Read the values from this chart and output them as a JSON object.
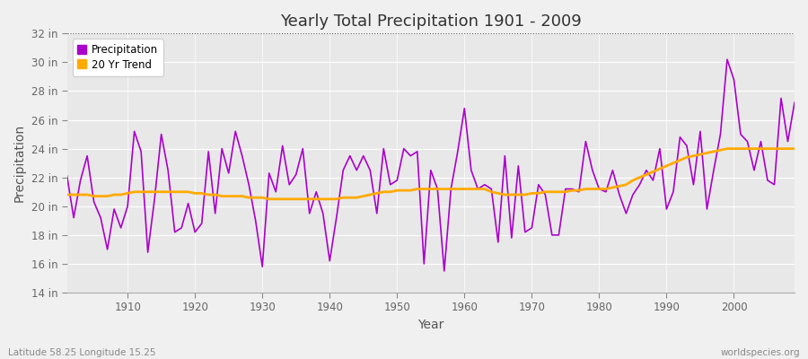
{
  "title": "Yearly Total Precipitation 1901 - 2009",
  "xlabel": "Year",
  "ylabel": "Precipitation",
  "bottom_left": "Latitude 58.25 Longitude 15.25",
  "bottom_right": "worldspecies.org",
  "ylim": [
    14,
    32
  ],
  "ytick_labels": [
    "14 in",
    "16 in",
    "18 in",
    "20 in",
    "22 in",
    "24 in",
    "26 in",
    "28 in",
    "30 in",
    "32 in"
  ],
  "ytick_values": [
    14,
    16,
    18,
    20,
    22,
    24,
    26,
    28,
    30,
    32
  ],
  "xlim": [
    1901,
    2009
  ],
  "xtick_values": [
    1910,
    1920,
    1930,
    1940,
    1950,
    1960,
    1970,
    1980,
    1990,
    2000
  ],
  "precip_color": "#aa00cc",
  "trend_color": "#ffaa00",
  "background_color": "#f0f0f0",
  "plot_bg_color": "#e8e8e8",
  "grid_color": "#ffffff",
  "years": [
    1901,
    1902,
    1903,
    1904,
    1905,
    1906,
    1907,
    1908,
    1909,
    1910,
    1911,
    1912,
    1913,
    1914,
    1915,
    1916,
    1917,
    1918,
    1919,
    1920,
    1921,
    1922,
    1923,
    1924,
    1925,
    1926,
    1927,
    1928,
    1929,
    1930,
    1931,
    1932,
    1933,
    1934,
    1935,
    1936,
    1937,
    1938,
    1939,
    1940,
    1941,
    1942,
    1943,
    1944,
    1945,
    1946,
    1947,
    1948,
    1949,
    1950,
    1951,
    1952,
    1953,
    1954,
    1955,
    1956,
    1957,
    1958,
    1959,
    1960,
    1961,
    1962,
    1963,
    1964,
    1965,
    1966,
    1967,
    1968,
    1969,
    1970,
    1971,
    1972,
    1973,
    1974,
    1975,
    1976,
    1977,
    1978,
    1979,
    1980,
    1981,
    1982,
    1983,
    1984,
    1985,
    1986,
    1987,
    1988,
    1989,
    1990,
    1991,
    1992,
    1993,
    1994,
    1995,
    1996,
    1997,
    1998,
    1999,
    2000,
    2001,
    2002,
    2003,
    2004,
    2005,
    2006,
    2007,
    2008,
    2009
  ],
  "precipitation": [
    22.1,
    19.2,
    21.8,
    23.5,
    20.3,
    19.2,
    17.0,
    19.8,
    18.5,
    20.0,
    25.2,
    23.8,
    16.8,
    20.5,
    25.0,
    22.5,
    18.2,
    18.5,
    20.2,
    18.2,
    18.8,
    23.8,
    19.5,
    24.0,
    22.3,
    25.2,
    23.5,
    21.5,
    19.0,
    15.8,
    22.3,
    21.0,
    24.2,
    21.5,
    22.2,
    24.0,
    19.5,
    21.0,
    19.5,
    16.2,
    19.2,
    22.5,
    23.5,
    22.5,
    23.5,
    22.5,
    19.5,
    24.0,
    21.5,
    21.8,
    24.0,
    23.5,
    23.8,
    16.0,
    22.5,
    21.2,
    15.5,
    21.2,
    23.8,
    26.8,
    22.5,
    21.2,
    21.5,
    21.2,
    17.5,
    23.5,
    17.8,
    22.8,
    18.2,
    18.5,
    21.5,
    20.8,
    18.0,
    18.0,
    21.2,
    21.2,
    21.0,
    24.5,
    22.5,
    21.2,
    21.0,
    22.5,
    20.8,
    19.5,
    20.8,
    21.5,
    22.5,
    21.8,
    24.0,
    19.8,
    21.0,
    24.8,
    24.2,
    21.5,
    25.2,
    19.8,
    22.5,
    25.0,
    30.2,
    28.8,
    25.0,
    24.5,
    22.5,
    24.5,
    21.8,
    21.5,
    27.5,
    24.5,
    27.2
  ],
  "trend": [
    20.8,
    20.8,
    20.8,
    20.8,
    20.7,
    20.7,
    20.7,
    20.8,
    20.8,
    20.9,
    21.0,
    21.0,
    21.0,
    21.0,
    21.0,
    21.0,
    21.0,
    21.0,
    21.0,
    20.9,
    20.9,
    20.8,
    20.8,
    20.7,
    20.7,
    20.7,
    20.7,
    20.6,
    20.6,
    20.6,
    20.5,
    20.5,
    20.5,
    20.5,
    20.5,
    20.5,
    20.5,
    20.5,
    20.5,
    20.5,
    20.5,
    20.6,
    20.6,
    20.6,
    20.7,
    20.8,
    20.9,
    21.0,
    21.0,
    21.1,
    21.1,
    21.1,
    21.2,
    21.2,
    21.2,
    21.2,
    21.2,
    21.2,
    21.2,
    21.2,
    21.2,
    21.2,
    21.2,
    21.0,
    20.9,
    20.8,
    20.8,
    20.8,
    20.8,
    20.9,
    20.9,
    21.0,
    21.0,
    21.0,
    21.0,
    21.1,
    21.1,
    21.2,
    21.2,
    21.2,
    21.2,
    21.3,
    21.4,
    21.5,
    21.8,
    22.0,
    22.2,
    22.4,
    22.6,
    22.8,
    23.0,
    23.2,
    23.4,
    23.5,
    23.6,
    23.7,
    23.8,
    23.9,
    24.0,
    24.0,
    24.0,
    24.0,
    24.0,
    24.0,
    24.0,
    24.0,
    24.0,
    24.0,
    24.0
  ]
}
